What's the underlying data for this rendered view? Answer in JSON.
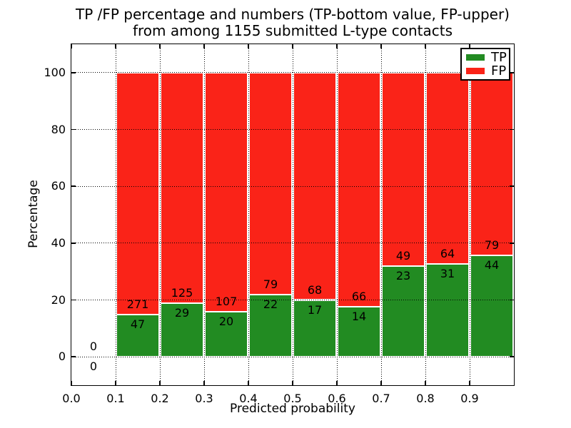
{
  "chart_data": {
    "type": "bar",
    "stacked": true,
    "units": "percent of bin total",
    "title": "TP /FP percentage and numbers (TP-bottom value, FP-upper)\nfrom among 1155 submitted L-type contacts",
    "title_lines": [
      "TP /FP percentage and numbers (TP-bottom value, FP-upper)",
      "from among 1155 submitted L-type contacts"
    ],
    "xlabel": "Predicted probability",
    "ylabel": "Percentage",
    "xlim": [
      0.0,
      1.0
    ],
    "ylim": [
      -10,
      110
    ],
    "bin_width": 0.1,
    "xticks": [
      "0.0",
      "0.1",
      "0.2",
      "0.3",
      "0.4",
      "0.5",
      "0.6",
      "0.7",
      "0.8",
      "0.9"
    ],
    "yticks": [
      0,
      20,
      40,
      60,
      80,
      100
    ],
    "grid": "dotted, both axes, drawn above bars",
    "total_contacts": 1155,
    "categories": [
      "0.0-0.1",
      "0.1-0.2",
      "0.2-0.3",
      "0.3-0.4",
      "0.4-0.5",
      "0.5-0.6",
      "0.6-0.7",
      "0.7-0.8",
      "0.8-0.9",
      "0.9-1.0"
    ],
    "series": [
      {
        "name": "TP",
        "color": "#228b22",
        "counts": [
          0,
          47,
          29,
          20,
          22,
          17,
          14,
          23,
          31,
          44
        ]
      },
      {
        "name": "FP",
        "color": "#fa2318",
        "counts": [
          0,
          271,
          125,
          107,
          79,
          68,
          66,
          49,
          64,
          79
        ]
      }
    ],
    "legend": {
      "position": "upper-right",
      "entries": [
        {
          "label": "TP",
          "color": "#228b22"
        },
        {
          "label": "FP",
          "color": "#fa2318"
        }
      ]
    }
  }
}
